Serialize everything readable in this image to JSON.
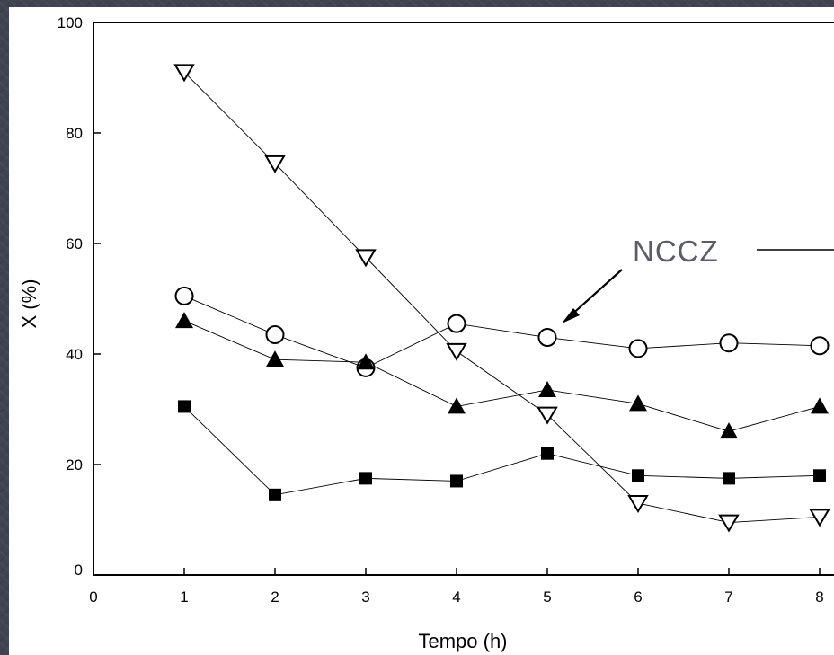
{
  "chart_data": {
    "type": "scatter",
    "xlabel": "Tempo (h)",
    "ylabel": "X (%)",
    "xlim": [
      0,
      8
    ],
    "ylim": [
      0,
      100
    ],
    "x_ticks": [
      "0",
      "1",
      "2",
      "3",
      "4",
      "5",
      "6",
      "7",
      "8"
    ],
    "y_ticks": [
      "0",
      "20",
      "40",
      "60",
      "80",
      "100"
    ],
    "grid": false,
    "annotation": "NCCZ",
    "series": [
      {
        "marker": "triangle-down-open",
        "x": [
          1,
          2,
          3,
          4,
          5,
          6,
          7,
          8
        ],
        "y": [
          91,
          74.5,
          57.5,
          40.5,
          29,
          13,
          9.5,
          10.5
        ]
      },
      {
        "marker": "circle-open",
        "x": [
          1,
          2,
          3,
          4,
          5,
          6,
          7,
          8
        ],
        "y": [
          50.5,
          43.5,
          37.5,
          45.5,
          43,
          41,
          42,
          41.5
        ]
      },
      {
        "marker": "triangle-up-filled",
        "x": [
          1,
          2,
          3,
          4,
          5,
          6,
          7,
          8
        ],
        "y": [
          46,
          39,
          38.5,
          30.5,
          33.5,
          31,
          26,
          30.5
        ]
      },
      {
        "marker": "square-filled",
        "x": [
          1,
          2,
          3,
          4,
          5,
          6,
          7,
          8
        ],
        "y": [
          30.5,
          14.5,
          17.5,
          17,
          22,
          18,
          17.5,
          18
        ]
      }
    ]
  }
}
